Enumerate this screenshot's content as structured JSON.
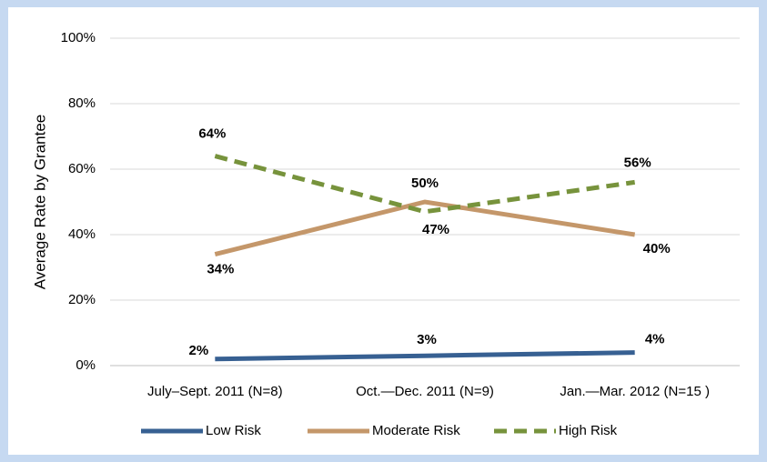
{
  "chart_data": {
    "type": "line",
    "y_label": "Average Rate by Grantee",
    "categories": [
      "July–Sept. 2011 (N=8)",
      "Oct.—Dec. 2011 (N=9)",
      "Jan.—Mar. 2012 (N=15 )"
    ],
    "series": [
      {
        "name": "Low Risk",
        "color": "#376092",
        "dash": false,
        "values": [
          2,
          3,
          4
        ],
        "value_labels": [
          "2%",
          "3%",
          "4%"
        ]
      },
      {
        "name": "Moderate Risk",
        "color": "#c4976a",
        "dash": false,
        "values": [
          34,
          50,
          40
        ],
        "value_labels": [
          "34%",
          "50%",
          "40%"
        ]
      },
      {
        "name": "High Risk",
        "color": "#77933c",
        "dash": true,
        "values": [
          64,
          47,
          56
        ],
        "value_labels": [
          "64%",
          "47%",
          "56%"
        ]
      }
    ],
    "ylim": [
      0,
      100
    ],
    "yticks": [
      {
        "value": 0,
        "label": "0%"
      },
      {
        "value": 20,
        "label": "20%"
      },
      {
        "value": 40,
        "label": "40%"
      },
      {
        "value": 60,
        "label": "60%"
      },
      {
        "value": 80,
        "label": "80%"
      },
      {
        "value": 100,
        "label": "100%"
      }
    ],
    "grid": true,
    "legend": "bottom"
  }
}
